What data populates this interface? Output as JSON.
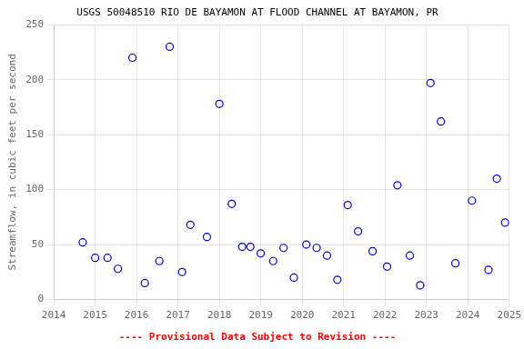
{
  "chart_data": {
    "type": "scatter",
    "title": "USGS 50048510 RIO DE BAYAMON AT FLOOD CHANNEL AT BAYAMON, PR",
    "ylabel": "Streamflow, in cubic feet per second",
    "x": [
      2014.7,
      2015.0,
      2015.3,
      2015.55,
      2015.9,
      2016.2,
      2016.55,
      2016.8,
      2017.1,
      2017.3,
      2017.7,
      2018.0,
      2018.3,
      2018.55,
      2018.75,
      2019.0,
      2019.3,
      2019.55,
      2019.8,
      2020.1,
      2020.35,
      2020.6,
      2020.85,
      2021.1,
      2021.35,
      2021.7,
      2022.05,
      2022.3,
      2022.6,
      2022.85,
      2023.1,
      2023.35,
      2023.7,
      2024.1,
      2024.5,
      2024.7,
      2024.9
    ],
    "values": [
      52,
      38,
      38,
      28,
      220,
      15,
      35,
      230,
      25,
      68,
      57,
      178,
      87,
      48,
      48,
      42,
      35,
      47,
      20,
      50,
      47,
      40,
      18,
      86,
      62,
      44,
      30,
      104,
      40,
      13,
      197,
      162,
      33,
      90,
      27,
      110,
      70
    ],
    "color": "#0000cc",
    "marker": "circle",
    "xlim": [
      2014,
      2025
    ],
    "ylim": [
      0,
      250
    ],
    "xticks": [
      2014,
      2015,
      2016,
      2017,
      2018,
      2019,
      2020,
      2021,
      2022,
      2023,
      2024,
      2025
    ],
    "yticks": [
      0,
      50,
      100,
      150,
      200,
      250
    ],
    "grid": true,
    "annotations": [
      {
        "text": "---- Provisional Data Subject to Revision ----",
        "color": "#ff0000"
      }
    ]
  }
}
